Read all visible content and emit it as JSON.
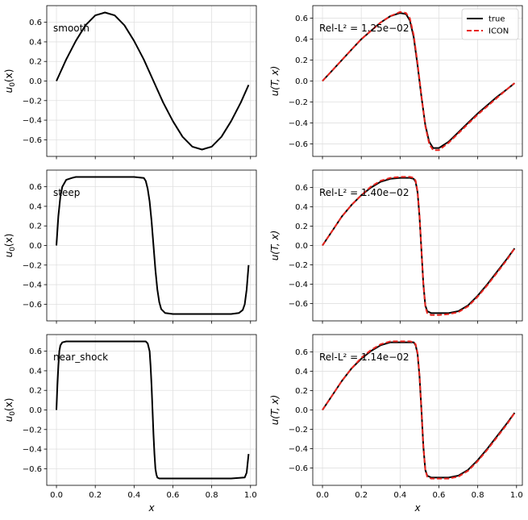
{
  "chart_data": [
    {
      "type": "line",
      "annotation": "smooth",
      "xlabel": "",
      "ylabel": "u_0(x)",
      "xlim": [
        -0.05,
        1.03
      ],
      "ylim": [
        -0.77,
        0.77
      ],
      "xticks": [
        0.0,
        0.2,
        0.4,
        0.6,
        0.8,
        1.0
      ],
      "yticks": [
        -0.6,
        -0.4,
        -0.2,
        0.0,
        0.2,
        0.4,
        0.6
      ],
      "show_xticklabels": false,
      "grid": true,
      "series": [
        {
          "color": "#000000",
          "style": "solid",
          "x": [
            0.0,
            0.05,
            0.1,
            0.15,
            0.2,
            0.25,
            0.3,
            0.35,
            0.4,
            0.45,
            0.5,
            0.55,
            0.6,
            0.65,
            0.7,
            0.75,
            0.8,
            0.85,
            0.9,
            0.95,
            0.99
          ],
          "y": [
            0.0,
            0.22,
            0.41,
            0.57,
            0.67,
            0.7,
            0.67,
            0.57,
            0.41,
            0.22,
            0.0,
            -0.22,
            -0.41,
            -0.57,
            -0.67,
            -0.7,
            -0.67,
            -0.57,
            -0.41,
            -0.22,
            -0.04
          ]
        }
      ]
    },
    {
      "type": "line",
      "annotation": "Rel-L² = 1.25e−02",
      "xlabel": "",
      "ylabel": "u(T, x)",
      "xlim": [
        -0.05,
        1.03
      ],
      "ylim": [
        -0.72,
        0.72
      ],
      "xticks": [
        0.0,
        0.2,
        0.4,
        0.6,
        0.8,
        1.0
      ],
      "yticks": [
        -0.6,
        -0.4,
        -0.2,
        0.0,
        0.2,
        0.4,
        0.6
      ],
      "show_xticklabels": false,
      "grid": true,
      "legend": {
        "position": "top-right",
        "entries": [
          "true",
          "ICON"
        ]
      },
      "series": [
        {
          "name": "true",
          "color": "#000000",
          "style": "solid",
          "x": [
            0.0,
            0.05,
            0.1,
            0.15,
            0.2,
            0.25,
            0.3,
            0.35,
            0.4,
            0.43,
            0.45,
            0.47,
            0.49,
            0.51,
            0.53,
            0.55,
            0.57,
            0.6,
            0.65,
            0.7,
            0.75,
            0.8,
            0.85,
            0.9,
            0.95,
            0.99
          ],
          "y": [
            0.0,
            0.1,
            0.2,
            0.3,
            0.4,
            0.48,
            0.56,
            0.62,
            0.65,
            0.64,
            0.58,
            0.42,
            0.15,
            -0.15,
            -0.42,
            -0.58,
            -0.64,
            -0.64,
            -0.58,
            -0.49,
            -0.4,
            -0.31,
            -0.23,
            -0.15,
            -0.08,
            -0.02
          ]
        },
        {
          "name": "ICON",
          "color": "#e8251f",
          "style": "dashed",
          "x": [
            0.0,
            0.05,
            0.1,
            0.15,
            0.2,
            0.25,
            0.3,
            0.35,
            0.4,
            0.43,
            0.45,
            0.47,
            0.49,
            0.51,
            0.53,
            0.55,
            0.57,
            0.6,
            0.65,
            0.7,
            0.75,
            0.8,
            0.85,
            0.9,
            0.95,
            0.99
          ],
          "y": [
            0.0,
            0.1,
            0.2,
            0.3,
            0.4,
            0.48,
            0.56,
            0.62,
            0.66,
            0.65,
            0.6,
            0.44,
            0.17,
            -0.14,
            -0.43,
            -0.6,
            -0.66,
            -0.66,
            -0.59,
            -0.5,
            -0.41,
            -0.32,
            -0.24,
            -0.16,
            -0.08,
            -0.02
          ]
        }
      ]
    },
    {
      "type": "line",
      "annotation": "steep",
      "xlabel": "",
      "ylabel": "u_0(x)",
      "xlim": [
        -0.05,
        1.03
      ],
      "ylim": [
        -0.77,
        0.77
      ],
      "xticks": [
        0.0,
        0.2,
        0.4,
        0.6,
        0.8,
        1.0
      ],
      "yticks": [
        -0.6,
        -0.4,
        -0.2,
        0.0,
        0.2,
        0.4,
        0.6
      ],
      "show_xticklabels": false,
      "grid": true,
      "series": [
        {
          "color": "#000000",
          "style": "solid",
          "x": [
            0.0,
            0.01,
            0.02,
            0.03,
            0.05,
            0.08,
            0.1,
            0.15,
            0.2,
            0.3,
            0.4,
            0.45,
            0.46,
            0.47,
            0.48,
            0.49,
            0.5,
            0.51,
            0.52,
            0.53,
            0.54,
            0.56,
            0.6,
            0.7,
            0.8,
            0.9,
            0.94,
            0.96,
            0.97,
            0.98,
            0.99
          ],
          "y": [
            0.0,
            0.3,
            0.5,
            0.6,
            0.67,
            0.69,
            0.7,
            0.7,
            0.7,
            0.7,
            0.7,
            0.69,
            0.66,
            0.58,
            0.45,
            0.25,
            0.0,
            -0.25,
            -0.45,
            -0.58,
            -0.65,
            -0.69,
            -0.7,
            -0.7,
            -0.7,
            -0.7,
            -0.69,
            -0.66,
            -0.6,
            -0.45,
            -0.2
          ]
        }
      ]
    },
    {
      "type": "line",
      "annotation": "Rel-L² = 1.40e−02",
      "xlabel": "",
      "ylabel": "u(T, x)",
      "xlim": [
        -0.05,
        1.03
      ],
      "ylim": [
        -0.78,
        0.78
      ],
      "xticks": [
        0.0,
        0.2,
        0.4,
        0.6,
        0.8,
        1.0
      ],
      "yticks": [
        -0.6,
        -0.4,
        -0.2,
        0.0,
        0.2,
        0.4,
        0.6
      ],
      "show_xticklabels": false,
      "grid": true,
      "series": [
        {
          "name": "true",
          "color": "#000000",
          "style": "solid",
          "x": [
            0.0,
            0.05,
            0.1,
            0.15,
            0.2,
            0.25,
            0.3,
            0.35,
            0.4,
            0.45,
            0.47,
            0.48,
            0.49,
            0.5,
            0.51,
            0.52,
            0.53,
            0.54,
            0.56,
            0.6,
            0.65,
            0.7,
            0.75,
            0.8,
            0.85,
            0.9,
            0.95,
            0.99
          ],
          "y": [
            0.0,
            0.15,
            0.3,
            0.42,
            0.52,
            0.6,
            0.66,
            0.69,
            0.7,
            0.7,
            0.69,
            0.66,
            0.55,
            0.3,
            -0.05,
            -0.4,
            -0.62,
            -0.68,
            -0.7,
            -0.7,
            -0.7,
            -0.68,
            -0.62,
            -0.52,
            -0.4,
            -0.27,
            -0.14,
            -0.03
          ]
        },
        {
          "name": "ICON",
          "color": "#e8251f",
          "style": "dashed",
          "x": [
            0.0,
            0.05,
            0.1,
            0.15,
            0.2,
            0.25,
            0.3,
            0.35,
            0.4,
            0.45,
            0.47,
            0.48,
            0.49,
            0.5,
            0.51,
            0.52,
            0.53,
            0.54,
            0.56,
            0.6,
            0.65,
            0.7,
            0.75,
            0.8,
            0.85,
            0.9,
            0.95,
            0.99
          ],
          "y": [
            0.0,
            0.15,
            0.3,
            0.42,
            0.52,
            0.61,
            0.67,
            0.7,
            0.71,
            0.71,
            0.7,
            0.67,
            0.56,
            0.32,
            -0.04,
            -0.4,
            -0.63,
            -0.7,
            -0.72,
            -0.72,
            -0.71,
            -0.69,
            -0.63,
            -0.53,
            -0.41,
            -0.28,
            -0.15,
            -0.03
          ]
        }
      ]
    },
    {
      "type": "line",
      "annotation": "near_shock",
      "xlabel": "x",
      "ylabel": "u_0(x)",
      "xlim": [
        -0.05,
        1.03
      ],
      "ylim": [
        -0.77,
        0.77
      ],
      "xticks": [
        0.0,
        0.2,
        0.4,
        0.6,
        0.8,
        1.0
      ],
      "yticks": [
        -0.6,
        -0.4,
        -0.2,
        0.0,
        0.2,
        0.4,
        0.6
      ],
      "show_xticklabels": true,
      "grid": true,
      "series": [
        {
          "color": "#000000",
          "style": "solid",
          "x": [
            0.0,
            0.005,
            0.01,
            0.015,
            0.02,
            0.03,
            0.05,
            0.1,
            0.2,
            0.3,
            0.4,
            0.46,
            0.47,
            0.48,
            0.485,
            0.49,
            0.495,
            0.5,
            0.505,
            0.51,
            0.515,
            0.52,
            0.53,
            0.55,
            0.6,
            0.7,
            0.8,
            0.9,
            0.97,
            0.98,
            0.99
          ],
          "y": [
            0.0,
            0.25,
            0.45,
            0.6,
            0.66,
            0.69,
            0.7,
            0.7,
            0.7,
            0.7,
            0.7,
            0.7,
            0.68,
            0.6,
            0.45,
            0.25,
            0.0,
            -0.25,
            -0.45,
            -0.6,
            -0.66,
            -0.69,
            -0.7,
            -0.7,
            -0.7,
            -0.7,
            -0.7,
            -0.7,
            -0.69,
            -0.64,
            -0.45
          ]
        }
      ]
    },
    {
      "type": "line",
      "annotation": "Rel-L² = 1.14e−02",
      "xlabel": "x",
      "ylabel": "u(T, x)",
      "xlim": [
        -0.05,
        1.03
      ],
      "ylim": [
        -0.78,
        0.78
      ],
      "xticks": [
        0.0,
        0.2,
        0.4,
        0.6,
        0.8,
        1.0
      ],
      "yticks": [
        -0.6,
        -0.4,
        -0.2,
        0.0,
        0.2,
        0.4,
        0.6
      ],
      "show_xticklabels": true,
      "grid": true,
      "series": [
        {
          "name": "true",
          "color": "#000000",
          "style": "solid",
          "x": [
            0.0,
            0.05,
            0.1,
            0.15,
            0.2,
            0.25,
            0.3,
            0.35,
            0.4,
            0.45,
            0.47,
            0.48,
            0.49,
            0.5,
            0.51,
            0.52,
            0.53,
            0.54,
            0.56,
            0.6,
            0.65,
            0.7,
            0.75,
            0.8,
            0.85,
            0.9,
            0.95,
            0.99
          ],
          "y": [
            0.0,
            0.15,
            0.3,
            0.43,
            0.53,
            0.61,
            0.67,
            0.7,
            0.7,
            0.7,
            0.7,
            0.67,
            0.58,
            0.35,
            0.0,
            -0.38,
            -0.62,
            -0.68,
            -0.7,
            -0.7,
            -0.7,
            -0.68,
            -0.62,
            -0.52,
            -0.4,
            -0.27,
            -0.14,
            -0.03
          ]
        },
        {
          "name": "ICON",
          "color": "#e8251f",
          "style": "dashed",
          "x": [
            0.0,
            0.05,
            0.1,
            0.15,
            0.2,
            0.25,
            0.3,
            0.35,
            0.4,
            0.45,
            0.47,
            0.48,
            0.49,
            0.5,
            0.51,
            0.52,
            0.53,
            0.54,
            0.56,
            0.6,
            0.65,
            0.7,
            0.75,
            0.8,
            0.85,
            0.9,
            0.95,
            0.99
          ],
          "y": [
            0.0,
            0.15,
            0.3,
            0.43,
            0.54,
            0.62,
            0.68,
            0.71,
            0.71,
            0.71,
            0.7,
            0.68,
            0.59,
            0.36,
            0.0,
            -0.38,
            -0.62,
            -0.69,
            -0.71,
            -0.71,
            -0.71,
            -0.69,
            -0.63,
            -0.53,
            -0.41,
            -0.28,
            -0.15,
            -0.03
          ]
        }
      ]
    }
  ]
}
